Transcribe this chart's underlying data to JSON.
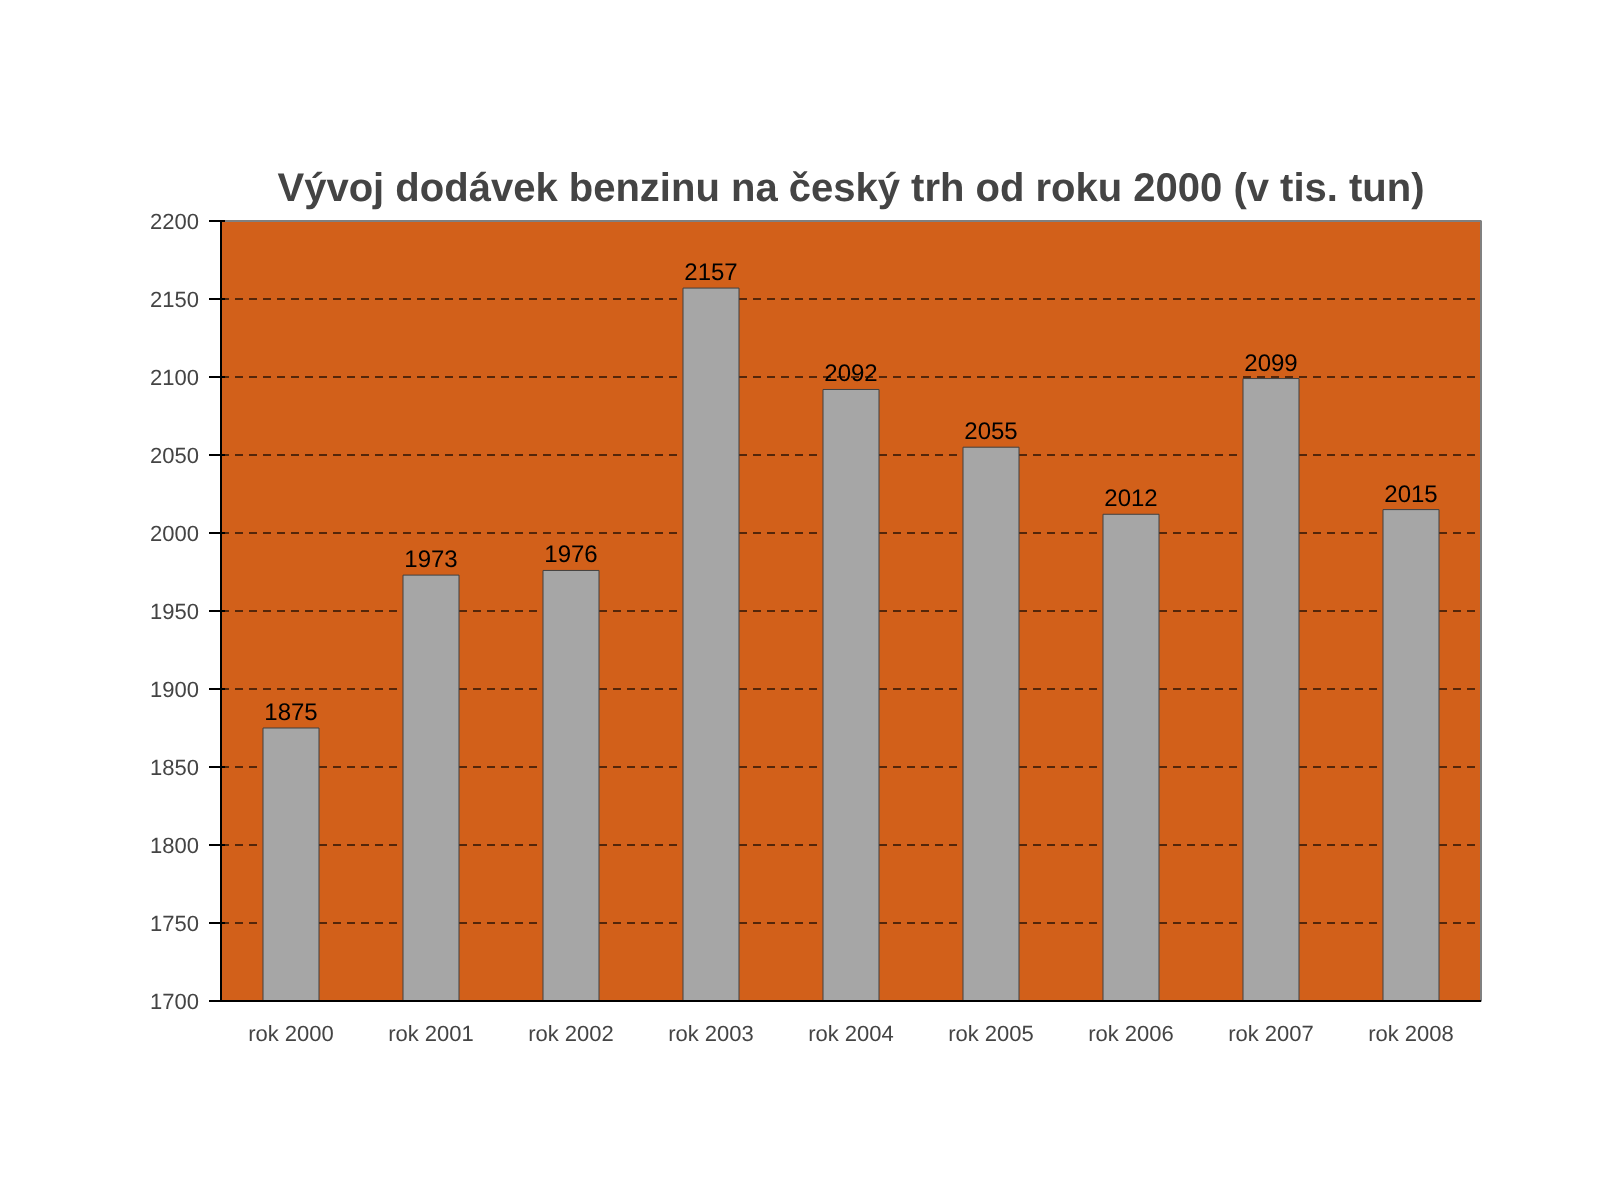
{
  "chart_data": {
    "type": "bar",
    "title": "Vývoj dodávek benzinu na český trh od roku 2000 (v tis. tun)",
    "categories": [
      "rok 2000",
      "rok 2001",
      "rok 2002",
      "rok 2003",
      "rok 2004",
      "rok 2005",
      "rok 2006",
      "rok 2007",
      "rok 2008"
    ],
    "values": [
      1875,
      1973,
      1976,
      2157,
      2092,
      2055,
      2012,
      2099,
      2015
    ],
    "color": "#a6a6a6",
    "ylim": [
      1700,
      2200
    ],
    "yticks": [
      1700,
      1750,
      1800,
      1850,
      1900,
      1950,
      2000,
      2050,
      2100,
      2150,
      2200
    ],
    "grid": "y",
    "data_labels": true
  }
}
